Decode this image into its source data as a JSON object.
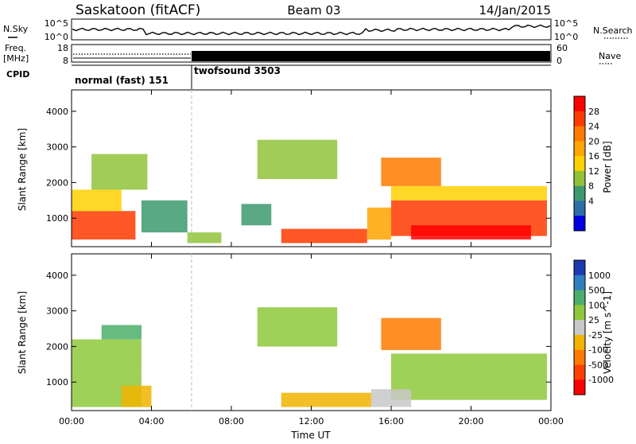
{
  "header": {
    "station": "Saskatoon (fitACF)",
    "beam": "Beam 03",
    "date": "14/Jan/2015"
  },
  "top_panels": {
    "nsky_label": "N.Sky",
    "nsky_ticks": [
      "10^5",
      "10^0"
    ],
    "nsearch_label": "N.Search",
    "nsearch_ticks": [
      "10^5",
      "10^0"
    ],
    "freq_label_line1": "Freq.",
    "freq_label_line2": "[MHz]",
    "freq_ticks": [
      "18",
      "8"
    ],
    "nave_label": "Nave",
    "nave_ticks": [
      "60",
      "0"
    ],
    "cpid_label": "CPID",
    "cpid_modes": [
      {
        "name": "normal (fast) 151",
        "start_hour": 0,
        "end_hour": 6
      },
      {
        "name": "twofsound 3503",
        "start_hour": 6,
        "end_hour": 24
      }
    ]
  },
  "chart_data": [
    {
      "type": "heatmap",
      "title": "",
      "parameter": "Power",
      "ylabel": "Slant Range [km]",
      "xlabel": "Time UT",
      "xlim": [
        0,
        24
      ],
      "ylim": [
        200,
        4600
      ],
      "yticks": [
        "4000",
        "3000",
        "2000",
        "1000"
      ],
      "colorbar": {
        "label": "Power [dB]",
        "ticks": [
          "28",
          "24",
          "20",
          "16",
          "12",
          "8",
          "4"
        ],
        "colors": [
          "#ff0000",
          "#ff3a00",
          "#ff7a00",
          "#ffa500",
          "#ffd000",
          "#90c33a",
          "#3c9a6e",
          "#2d6ea8",
          "#0000e0"
        ]
      },
      "regions": [
        {
          "t0": 0.0,
          "t1": 3.2,
          "r0": 400,
          "r1": 1200,
          "level": 26
        },
        {
          "t0": 0.0,
          "t1": 2.5,
          "r0": 1200,
          "r1": 1800,
          "level": 14
        },
        {
          "t0": 1.0,
          "t1": 3.8,
          "r0": 1800,
          "r1": 2800,
          "level": 10
        },
        {
          "t0": 3.5,
          "t1": 5.8,
          "r0": 600,
          "r1": 1500,
          "level": 6
        },
        {
          "t0": 5.8,
          "t1": 7.5,
          "r0": 300,
          "r1": 600,
          "level": 8
        },
        {
          "t0": 8.5,
          "t1": 10.0,
          "r0": 800,
          "r1": 1400,
          "level": 6
        },
        {
          "t0": 9.3,
          "t1": 13.3,
          "r0": 2100,
          "r1": 3200,
          "level": 8
        },
        {
          "t0": 10.5,
          "t1": 14.8,
          "r0": 300,
          "r1": 700,
          "level": 24
        },
        {
          "t0": 14.8,
          "t1": 16.0,
          "r0": 400,
          "r1": 1300,
          "level": 18
        },
        {
          "t0": 15.5,
          "t1": 18.5,
          "r0": 1900,
          "r1": 2700,
          "level": 22
        },
        {
          "t0": 16.0,
          "t1": 23.8,
          "r0": 500,
          "r1": 1500,
          "level": 24
        },
        {
          "t0": 16.0,
          "t1": 23.8,
          "r0": 1500,
          "r1": 1900,
          "level": 12
        },
        {
          "t0": 17.0,
          "t1": 23.0,
          "r0": 400,
          "r1": 800,
          "level": 28
        }
      ]
    },
    {
      "type": "heatmap",
      "title": "",
      "parameter": "Velocity",
      "ylabel": "Slant Range [km]",
      "xlabel": "Time UT",
      "xlim": [
        0,
        24
      ],
      "ylim": [
        200,
        4600
      ],
      "yticks": [
        "4000",
        "3000",
        "2000",
        "1000"
      ],
      "xticks": [
        "00:00",
        "04:00",
        "08:00",
        "12:00",
        "16:00",
        "20:00",
        "00:00"
      ],
      "colorbar": {
        "label": "Velocity [m s^-1]",
        "ticks": [
          "1000",
          "500",
          "100",
          "25",
          "-25",
          "-100",
          "-500",
          "-1000"
        ],
        "colors": [
          "#1c39b0",
          "#2f7fc0",
          "#4cae6a",
          "#8ec83a",
          "#c8c8c8",
          "#f0b400",
          "#ff7a00",
          "#ff4000",
          "#ff0000"
        ]
      },
      "regions": [
        {
          "t0": 0.0,
          "t1": 3.5,
          "r0": 300,
          "r1": 1200,
          "level": 25
        },
        {
          "t0": 0.0,
          "t1": 3.5,
          "r0": 1200,
          "r1": 2200,
          "level": 25
        },
        {
          "t0": 1.5,
          "t1": 3.5,
          "r0": 2200,
          "r1": 2600,
          "level": 100
        },
        {
          "t0": 2.5,
          "t1": 4.0,
          "r0": 300,
          "r1": 900,
          "level": -100
        },
        {
          "t0": 9.3,
          "t1": 13.3,
          "r0": 2000,
          "r1": 3100,
          "level": 25
        },
        {
          "t0": 10.5,
          "t1": 15.0,
          "r0": 300,
          "r1": 700,
          "level": -100
        },
        {
          "t0": 15.5,
          "t1": 18.5,
          "r0": 1900,
          "r1": 2800,
          "level": -500
        },
        {
          "t0": 16.0,
          "t1": 23.8,
          "r0": 500,
          "r1": 1800,
          "level": 25
        },
        {
          "t0": 15.0,
          "t1": 17.0,
          "r0": 300,
          "r1": 800,
          "level": -25
        }
      ]
    }
  ]
}
